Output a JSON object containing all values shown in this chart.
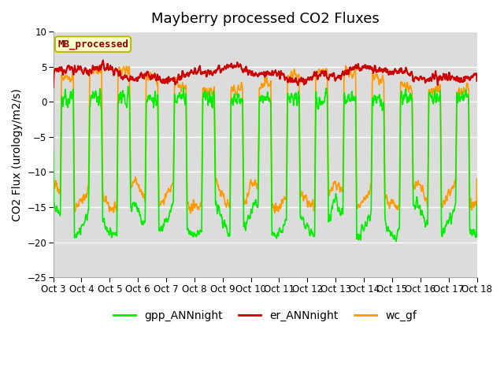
{
  "title": "Mayberry processed CO2 Fluxes",
  "ylabel": "CO2 Flux (urology/m2/s)",
  "ylim": [
    -25,
    10
  ],
  "yticks": [
    -25,
    -20,
    -15,
    -10,
    -5,
    0,
    5,
    10
  ],
  "xtick_labels": [
    "Oct 3",
    "Oct 4",
    "Oct 5",
    "Oct 6",
    "Oct 7",
    "Oct 8",
    "Oct 9",
    "Oct 10",
    "Oct 11",
    "Oct 12",
    "Oct 13",
    "Oct 14",
    "Oct 15",
    "Oct 16",
    "Oct 17",
    "Oct 18"
  ],
  "legend_labels": [
    "gpp_ANNnight",
    "er_ANNnight",
    "wc_gf"
  ],
  "annotation_text": "MB_processed",
  "annotation_bg": "#ffffcc",
  "annotation_fg": "#880000",
  "gpp_color": "#00ee00",
  "er_color": "#cc0000",
  "wc_color": "#ff9900",
  "background_color": "#dcdcdc",
  "grid_color": "#ffffff",
  "title_fontsize": 13,
  "axis_fontsize": 10,
  "tick_fontsize": 8.5,
  "legend_fontsize": 10,
  "linewidth_gpp": 1.2,
  "linewidth_er": 1.5,
  "linewidth_wc": 1.2
}
